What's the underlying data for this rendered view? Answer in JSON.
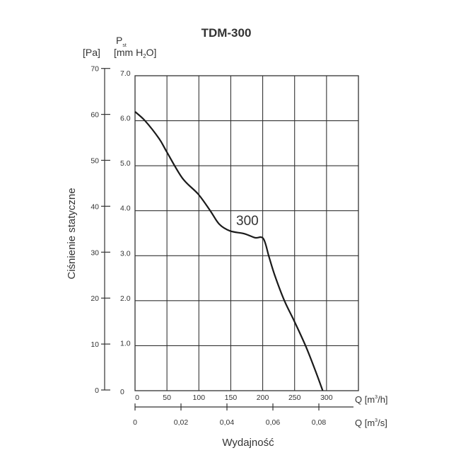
{
  "chart_data": {
    "type": "line",
    "title": "TDM-300",
    "ylabel": "Ciśnienie statyczne",
    "xlabel": "Wydajność",
    "y_unit_symbol": "P",
    "y_unit_subscript": "st",
    "y_unit_pa": "[Pa]",
    "y_unit_mm": "[mm H",
    "y_unit_mm_sub": "2",
    "y_unit_mm_end": "O]",
    "x_unit_h": "Q [m",
    "x_unit_h_sup": "3",
    "x_unit_h_end": "/h]",
    "x_unit_s": "Q [m",
    "x_unit_s_sup": "3",
    "x_unit_s_end": "/s]",
    "xlim": [
      0,
      350
    ],
    "ylim": [
      0,
      7
    ],
    "grid": true,
    "x_ticks": [
      "0",
      "50",
      "100",
      "150",
      "200",
      "250",
      "300"
    ],
    "x_tick_values": [
      0,
      50,
      100,
      150,
      200,
      250,
      300
    ],
    "y_ticks_mm": [
      "0",
      "1.0",
      "2.0",
      "3.0",
      "4.0",
      "5.0",
      "6.0",
      "7.0"
    ],
    "y_tick_values_mm": [
      0,
      1,
      2,
      3,
      4,
      5,
      6,
      7
    ],
    "y_ticks_pa": [
      "0",
      "10",
      "20",
      "30",
      "40",
      "50",
      "60",
      "70"
    ],
    "y_tick_values_pa": [
      0,
      10,
      20,
      30,
      40,
      50,
      60,
      70
    ],
    "x2_ticks": [
      "0",
      "0,02",
      "0,04",
      "0,06",
      "0,08"
    ],
    "x2_tick_values": [
      0,
      0.02,
      0.04,
      0.06,
      0.08
    ],
    "series": [
      {
        "name": "300",
        "color": "#1a1a1a",
        "x": [
          0,
          15.6,
          37.8,
          50,
          74.4,
          98.9,
          117.8,
          132,
          148.9,
          171,
          187.8,
          201,
          210,
          219,
          234,
          250,
          268,
          284,
          294
        ],
        "y": [
          6.2,
          6.0,
          5.6,
          5.3,
          4.72,
          4.37,
          4.0,
          3.7,
          3.55,
          3.49,
          3.4,
          3.38,
          2.97,
          2.56,
          2.0,
          1.53,
          0.97,
          0.39,
          0
        ]
      }
    ]
  }
}
